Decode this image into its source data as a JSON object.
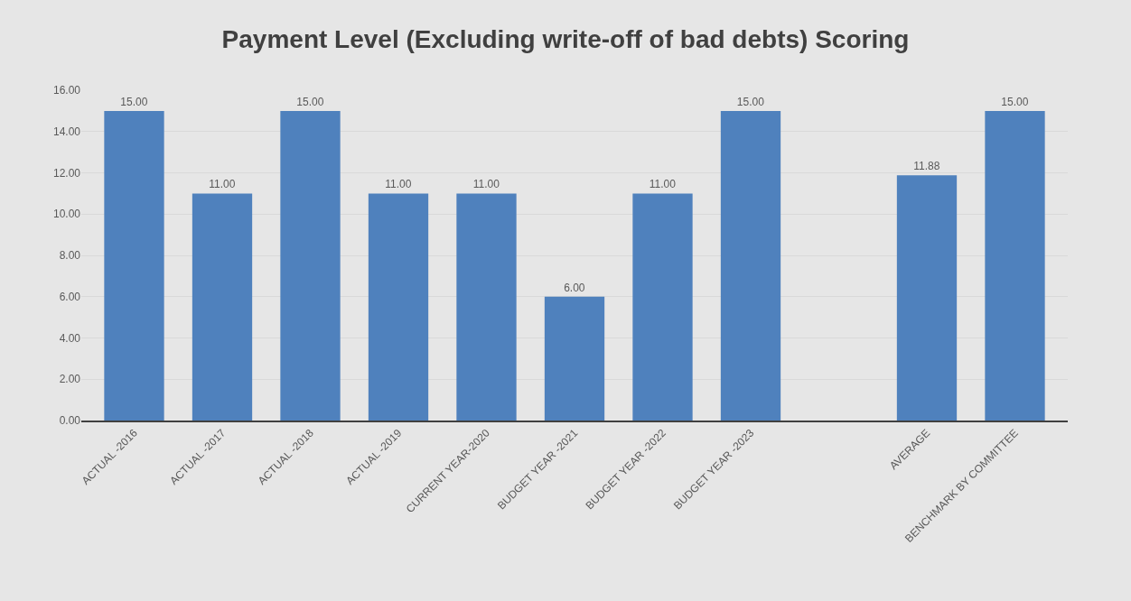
{
  "chart_data": {
    "type": "bar",
    "title": "Payment Level (Excluding write-off of bad debts) Scoring",
    "categories": [
      "ACTUAL -2016",
      "ACTUAL -2017",
      "ACTUAL -2018",
      "ACTUAL -2019",
      "CURRENT YEAR-2020",
      "BUDGET YEAR -2021",
      "BUDGET YEAR -2022",
      "BUDGET YEAR -2023",
      null,
      "AVERAGE",
      "BENCHMARK BY COMMITTEE"
    ],
    "values": [
      15,
      11,
      15,
      11,
      11,
      6,
      11,
      15,
      null,
      11.88,
      15
    ],
    "value_labels": [
      "15.00",
      "11.00",
      "15.00",
      "11.00",
      "11.00",
      "6.00",
      "11.00",
      "15.00",
      null,
      "11.88",
      "15.00"
    ],
    "color": "#4f81bd",
    "ylim": [
      0,
      16
    ],
    "yticks": [
      {
        "value": 0,
        "label": "0.00"
      },
      {
        "value": 2,
        "label": "2.00"
      },
      {
        "value": 4,
        "label": "4.00"
      },
      {
        "value": 6,
        "label": "6.00"
      },
      {
        "value": 8,
        "label": "8.00"
      },
      {
        "value": 10,
        "label": "10.00"
      },
      {
        "value": 12,
        "label": "12.00"
      },
      {
        "value": 14,
        "label": "14.00"
      },
      {
        "value": 16,
        "label": "16.00"
      }
    ],
    "grid": "y"
  }
}
